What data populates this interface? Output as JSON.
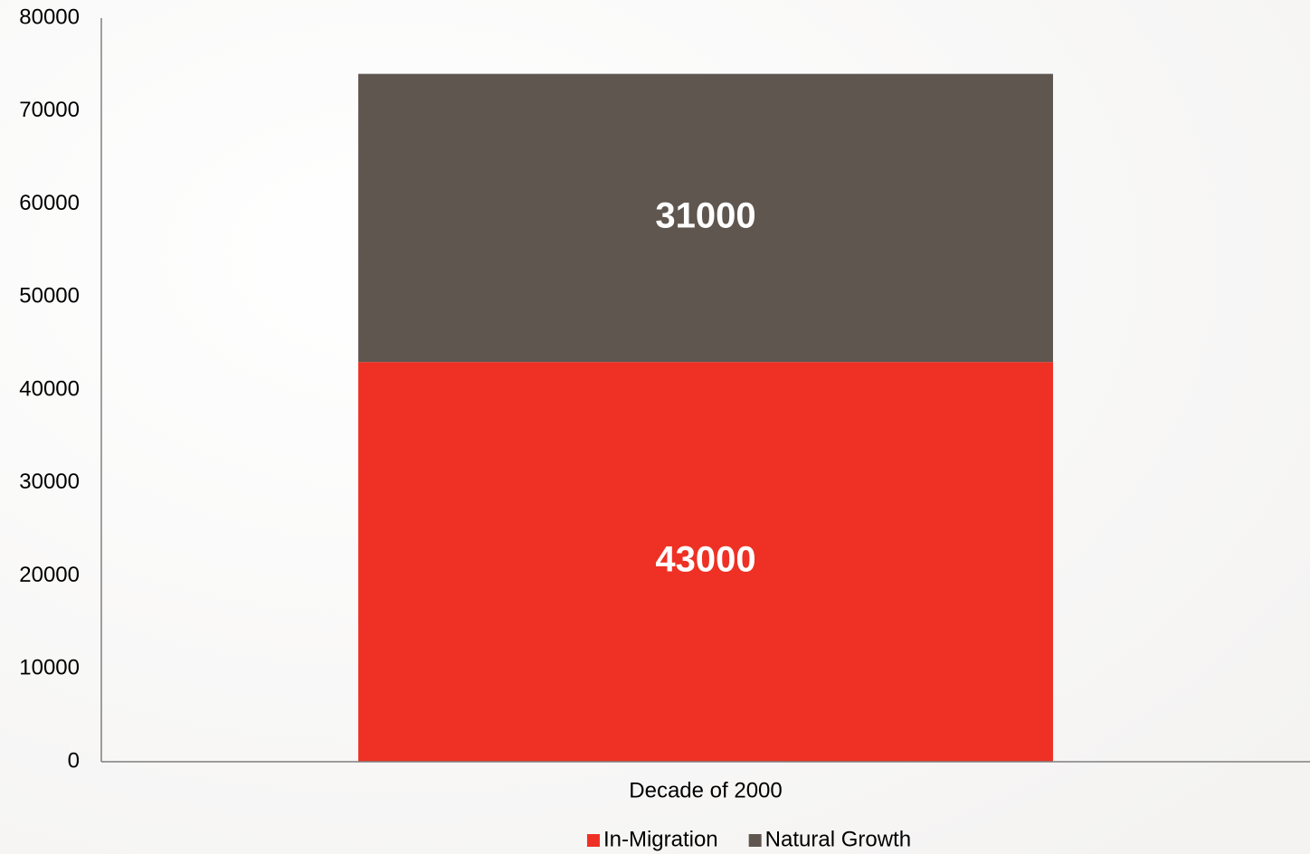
{
  "chart_data": {
    "type": "bar",
    "stacked": true,
    "categories": [
      "Decade of 2000"
    ],
    "series": [
      {
        "name": "In-Migration",
        "color": "#ee3124",
        "values": [
          43000
        ]
      },
      {
        "name": "Natural Growth",
        "color": "#5f5650",
        "values": [
          31000
        ]
      }
    ],
    "ylim": [
      0,
      80000
    ],
    "yticks": [
      0,
      10000,
      20000,
      30000,
      40000,
      50000,
      60000,
      70000,
      80000
    ],
    "grid": false,
    "legend": "bottom"
  }
}
